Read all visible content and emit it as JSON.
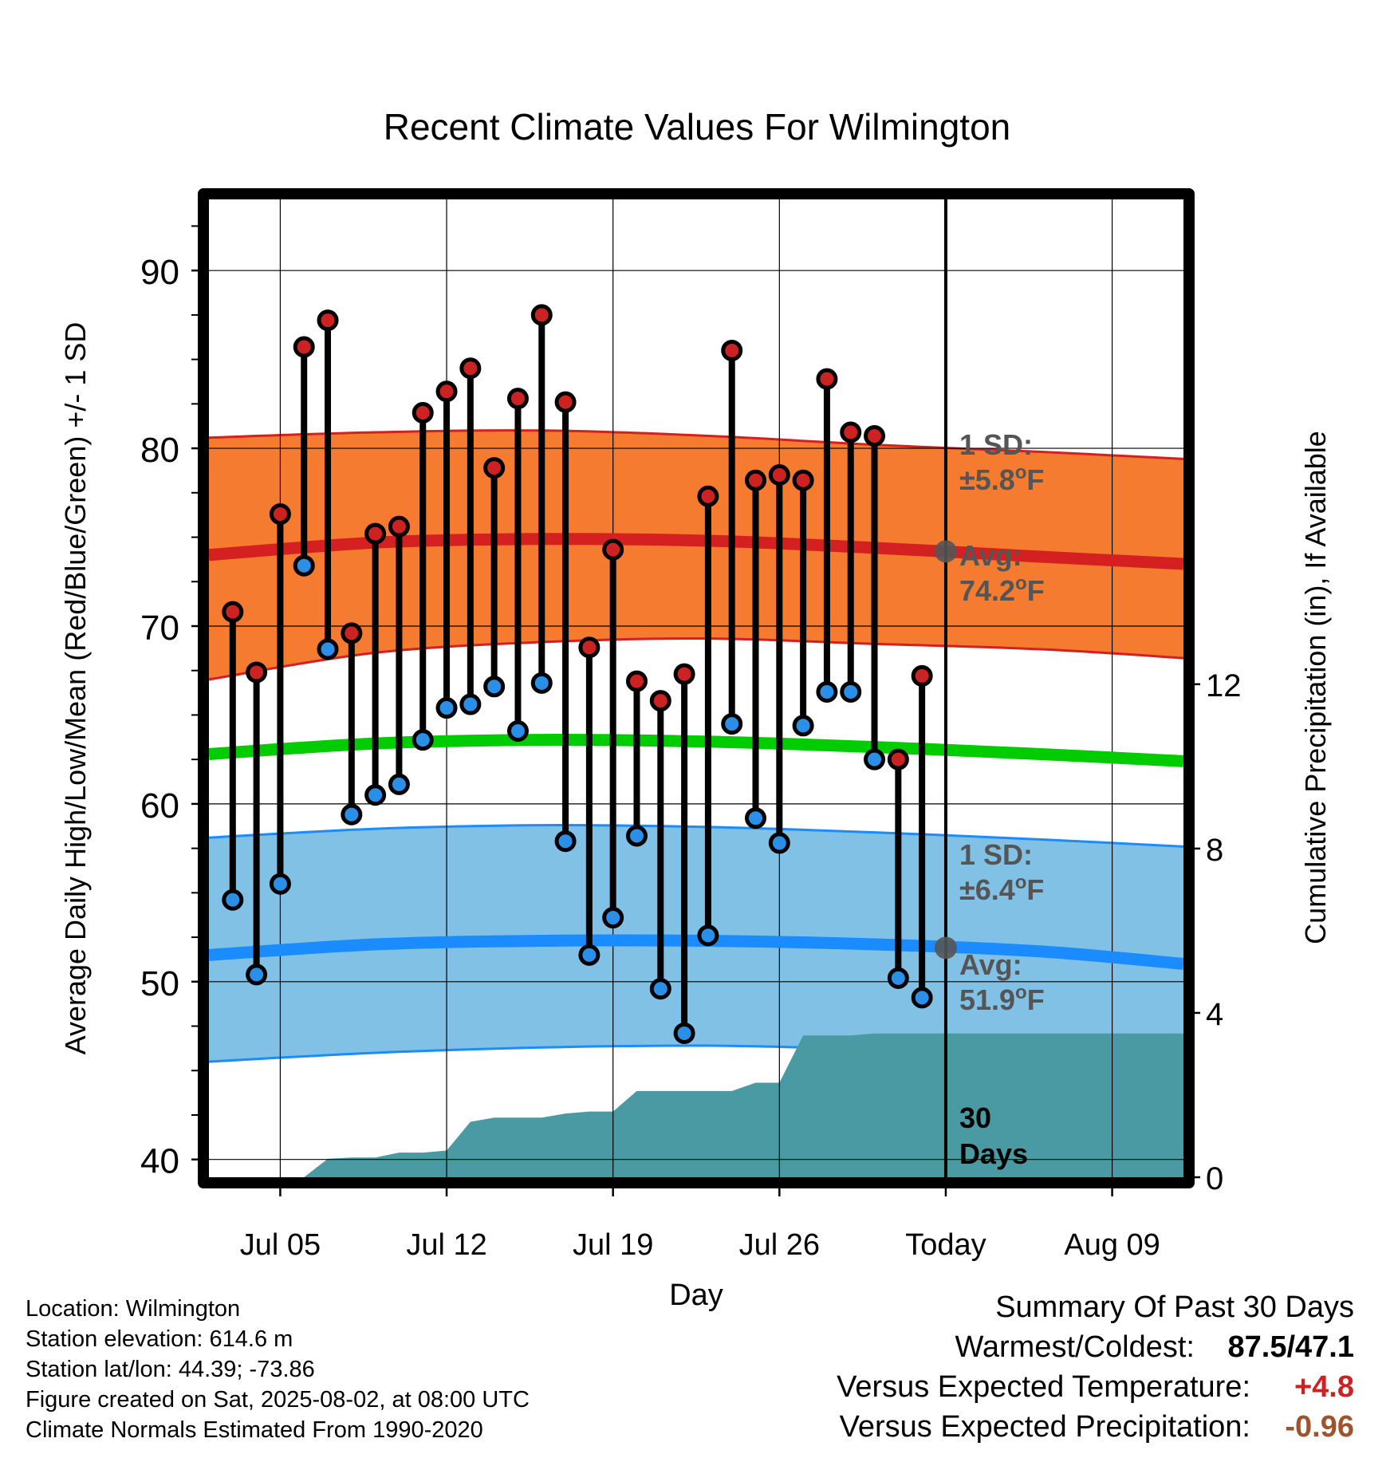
{
  "chart_data": {
    "type": "scatter",
    "title": "Recent Climate Values For Wilmington",
    "xlabel": "Day",
    "ylabel": "Average Daily High/Low/Mean (Red/Blue/Green) +/- 1 SD",
    "y2label": "Cumulative Precipitation (in), If Available",
    "ylim": [
      39,
      94
    ],
    "y_ticks": [
      "40",
      "50",
      "60",
      "70",
      "80",
      "90"
    ],
    "y2lim": [
      0,
      23.8
    ],
    "y2_ticks": [
      "0",
      "4",
      "8",
      "12"
    ],
    "x_days": [
      "Jul 02",
      "Aug 12"
    ],
    "x_tick_labels": [
      {
        "day": "Jul 05",
        "label": "Jul 05"
      },
      {
        "day": "Jul 12",
        "label": "Jul 12"
      },
      {
        "day": "Jul 19",
        "label": "Jul 19"
      },
      {
        "day": "Jul 26",
        "label": "Jul 26"
      },
      {
        "day": "Aug 02",
        "label": "Today"
      },
      {
        "day": "Aug 09",
        "label": "Aug 09"
      }
    ],
    "grid": true,
    "today": "Aug 02",
    "daily": {
      "dates": [
        "Jul 03",
        "Jul 04",
        "Jul 05",
        "Jul 06",
        "Jul 07",
        "Jul 08",
        "Jul 09",
        "Jul 10",
        "Jul 11",
        "Jul 12",
        "Jul 13",
        "Jul 14",
        "Jul 15",
        "Jul 16",
        "Jul 17",
        "Jul 18",
        "Jul 19",
        "Jul 20",
        "Jul 21",
        "Jul 22",
        "Jul 23",
        "Jul 24",
        "Jul 25",
        "Jul 26",
        "Jul 27",
        "Jul 28",
        "Jul 29",
        "Jul 30",
        "Jul 31",
        "Aug 01"
      ],
      "high": [
        70.8,
        67.4,
        76.3,
        85.7,
        87.2,
        69.6,
        75.2,
        75.6,
        82.0,
        83.2,
        84.5,
        78.9,
        82.8,
        87.5,
        82.6,
        68.8,
        74.3,
        66.9,
        65.8,
        67.3,
        77.3,
        85.5,
        78.2,
        78.5,
        78.2,
        83.9,
        80.9,
        80.7,
        62.5,
        67.2
      ],
      "low": [
        54.6,
        50.4,
        55.5,
        73.4,
        68.7,
        59.4,
        60.5,
        61.1,
        63.6,
        65.4,
        65.6,
        66.6,
        64.1,
        66.8,
        57.9,
        51.5,
        53.6,
        58.2,
        49.6,
        47.1,
        52.6,
        64.5,
        59.2,
        57.8,
        64.4,
        66.3,
        66.3,
        62.5,
        50.2,
        49.1
      ]
    },
    "normals": {
      "dates": [
        "Jul 02",
        "Jul 09",
        "Jul 16",
        "Jul 23",
        "Jul 30",
        "Aug 06",
        "Aug 12"
      ],
      "high_avg": [
        74.0,
        74.7,
        74.9,
        74.8,
        74.4,
        73.9,
        73.5
      ],
      "high_sd_upper": [
        80.6,
        80.9,
        81.0,
        80.7,
        80.2,
        79.8,
        79.4
      ],
      "high_sd_lower": [
        67.0,
        68.5,
        69.1,
        69.3,
        69.0,
        68.7,
        68.2
      ],
      "mean_avg": [
        62.8,
        63.4,
        63.6,
        63.5,
        63.2,
        62.8,
        62.4
      ],
      "low_avg": [
        51.5,
        52.1,
        52.3,
        52.3,
        52.1,
        51.7,
        51.0
      ],
      "low_sd_upper": [
        58.1,
        58.6,
        58.8,
        58.7,
        58.4,
        58.0,
        57.6
      ],
      "low_sd_lower": [
        45.5,
        46.0,
        46.3,
        46.4,
        46.2,
        46.0,
        45.6
      ]
    },
    "precip_cumulative": {
      "dates": [
        "Jul 02",
        "Jul 03",
        "Jul 04",
        "Jul 05",
        "Jul 06",
        "Jul 07",
        "Jul 08",
        "Jul 09",
        "Jul 10",
        "Jul 11",
        "Jul 12",
        "Jul 13",
        "Jul 14",
        "Jul 15",
        "Jul 16",
        "Jul 17",
        "Jul 18",
        "Jul 19",
        "Jul 20",
        "Jul 21",
        "Jul 22",
        "Jul 23",
        "Jul 24",
        "Jul 25",
        "Jul 26",
        "Jul 27",
        "Jul 28",
        "Jul 29",
        "Jul 30",
        "Jul 31",
        "Aug 01",
        "Aug 02",
        "Aug 12"
      ],
      "values": [
        0.0,
        0.0,
        0.0,
        0.0,
        0.0,
        0.45,
        0.48,
        0.48,
        0.6,
        0.6,
        0.65,
        1.35,
        1.45,
        1.45,
        1.45,
        1.55,
        1.6,
        1.6,
        2.1,
        2.1,
        2.1,
        2.1,
        2.1,
        2.3,
        2.3,
        3.45,
        3.45,
        3.45,
        3.5,
        3.5,
        3.5,
        3.5,
        3.5
      ]
    },
    "annotations": {
      "high_sd_label": "1 SD:",
      "high_sd_value": "±5.8°F",
      "high_avg_label": "Avg:",
      "high_avg_value": "74.2°F",
      "today_high_avg": 74.2,
      "low_sd_label": "1 SD:",
      "low_sd_value": "±6.4°F",
      "low_avg_label": "Avg:",
      "low_avg_value": "51.9°F",
      "today_low_avg": 51.9,
      "window_label": "30",
      "window_label2": "Days"
    },
    "colors": {
      "high_band": "#f47b30",
      "high_line": "#d42020",
      "low_band": "#82c1e6",
      "low_line": "#1a8cff",
      "mean_line": "#00cc00",
      "precip": "#4a9aa3",
      "high_dot": "#cc2222",
      "low_dot": "#2a8fe6",
      "annotation_text": "#555555",
      "warm_value": "#cc2222",
      "precip_value": "#a0522d"
    }
  },
  "footer": {
    "location": "Location: Wilmington",
    "elevation": "Station elevation: 614.6 m",
    "latlon": "Station lat/lon: 44.39; -73.86",
    "created": "Figure created on Sat, 2025-08-02, at 08:00 UTC",
    "normals": "Climate Normals Estimated From 1990-2020"
  },
  "summary": {
    "title": "Summary Of Past 30 Days",
    "warmest_coldest_label": "Warmest/Coldest:",
    "warmest_coldest_value": "87.5/47.1",
    "temp_label": "Versus Expected Temperature:",
    "temp_value": "+4.8",
    "precip_label": "Versus Expected Precipitation:",
    "precip_value": "-0.96"
  }
}
